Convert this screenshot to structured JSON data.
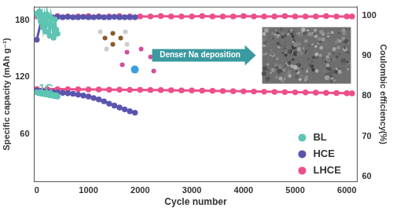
{
  "chart_data": {
    "type": "scatter",
    "x_label": "Cycle number",
    "y_label": "Specific capacity (mAh g⁻¹)",
    "y2_label": "Coulombic efficiency(%)",
    "annotations": [
      {
        "text": "1C"
      },
      {
        "text": "Denser Na deposition"
      }
    ],
    "xlim": [
      -50,
      6200
    ],
    "xticks": [
      0,
      1000,
      2000,
      3000,
      4000,
      5000,
      6000
    ],
    "ylim": [
      10,
      194
    ],
    "yticks": [
      60,
      120,
      180
    ],
    "y2lim": [
      58.7,
      102.2
    ],
    "y2ticks": [
      60,
      70,
      80,
      90,
      100
    ],
    "grid": false,
    "legend": "bottom-right",
    "series": [
      {
        "name": "BL",
        "color": "#5ec4b3",
        "marker": "circle",
        "line_style": "solid",
        "x": [
          0,
          25,
          50,
          75,
          100,
          125,
          150,
          175,
          200,
          225,
          250,
          275,
          300,
          325,
          350,
          375,
          400
        ],
        "values": [
          104,
          103.5,
          103,
          104,
          102.5,
          103,
          102,
          103,
          101.5,
          102,
          101,
          102,
          100.5,
          101,
          100,
          101,
          99.5
        ]
      },
      {
        "name": "BL",
        "color": "#5ec4b3",
        "marker": "circle",
        "line_style": "solid",
        "axis": "y2",
        "x": [
          0,
          25,
          50,
          75,
          100,
          125,
          150,
          175,
          200,
          225,
          250,
          275,
          300,
          325,
          350,
          375,
          400
        ],
        "values": [
          100.5,
          99.8,
          101,
          98.5,
          100.2,
          97,
          99.6,
          96,
          100.3,
          98,
          95,
          99.5,
          97.5,
          94.5,
          99,
          96.5,
          95.5
        ]
      },
      {
        "name": "HCE",
        "color": "#5a55ad",
        "marker": "circle",
        "line_style": "solid",
        "x": [
          0,
          100,
          200,
          300,
          400,
          500,
          600,
          700,
          800,
          900,
          1000,
          1100,
          1200,
          1300,
          1400,
          1500,
          1600,
          1700,
          1800,
          1900
        ],
        "values": [
          106,
          105.5,
          105,
          104.5,
          104,
          103.5,
          103,
          102.5,
          101.5,
          100.5,
          99.5,
          98,
          96.5,
          94.5,
          92,
          90,
          88,
          86,
          84,
          82.5
        ]
      },
      {
        "name": "HCE",
        "color": "#5a55ad",
        "marker": "circle",
        "line_style": "solid",
        "axis": "y2",
        "x": [
          0,
          100,
          200,
          300,
          400,
          500,
          600,
          700,
          800,
          900,
          1000,
          1100,
          1200,
          1300,
          1400,
          1500,
          1600,
          1700,
          1800,
          1900
        ],
        "values": [
          94,
          99.5,
          99.6,
          99.6,
          99.7,
          99.6,
          99.7,
          99.6,
          99.6,
          99.7,
          99.6,
          99.6,
          99.7,
          99.6,
          99.6,
          99.7,
          99.6,
          99.6,
          99.6,
          99.6
        ]
      },
      {
        "name": "LHCE",
        "color": "#ec4f8a",
        "marker": "circle",
        "line_style": "solid",
        "x": [
          0,
          200,
          400,
          600,
          800,
          1000,
          1200,
          1400,
          1600,
          1800,
          2000,
          2200,
          2400,
          2600,
          2800,
          3000,
          3200,
          3400,
          3600,
          3800,
          4000,
          4200,
          4400,
          4600,
          4800,
          5000,
          5200,
          5400,
          5600,
          5800,
          6000,
          6100
        ],
        "values": [
          107.5,
          107.4,
          107.3,
          107.2,
          107.1,
          107,
          106.9,
          106.8,
          106.7,
          106.6,
          106.5,
          106.4,
          106.3,
          106.2,
          106,
          105.9,
          105.7,
          105.6,
          105.4,
          105.2,
          105,
          104.8,
          104.6,
          104.4,
          104.2,
          104,
          103.8,
          103.6,
          103.4,
          103.2,
          103,
          102.9
        ]
      },
      {
        "name": "LHCE",
        "color": "#ec4f8a",
        "marker": "circle",
        "line_style": "solid",
        "axis": "y2",
        "x": [
          0,
          200,
          400,
          600,
          800,
          1000,
          1200,
          1400,
          1600,
          1800,
          2000,
          2200,
          2400,
          2600,
          2800,
          3000,
          3200,
          3400,
          3600,
          3800,
          4000,
          4200,
          4400,
          4600,
          4800,
          5000,
          5200,
          5400,
          5600,
          5800,
          6000,
          6100
        ],
        "values": [
          99.8,
          99.8,
          99.9,
          99.8,
          99.8,
          99.9,
          99.8,
          99.8,
          99.9,
          99.8,
          99.8,
          99.8,
          99.9,
          99.8,
          99.8,
          99.8,
          99.9,
          99.8,
          99.8,
          99.8,
          99.9,
          99.8,
          99.8,
          99.8,
          99.9,
          99.8,
          99.8,
          99.8,
          99.9,
          99.8,
          99.8,
          99.8
        ]
      }
    ]
  }
}
